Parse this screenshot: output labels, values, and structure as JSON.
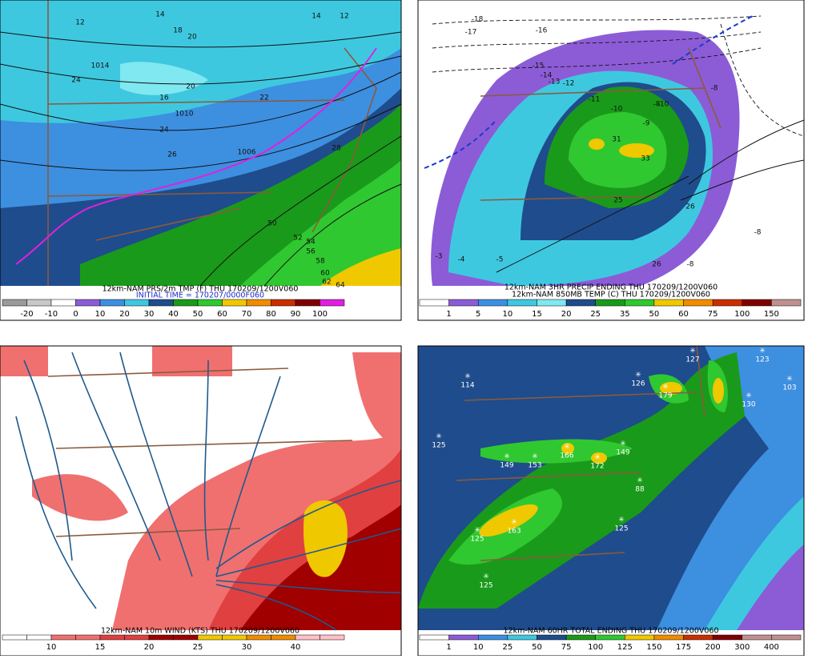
{
  "panels": [
    {
      "caption": "12km-NAM PRS/2m TMP (F) THU 170209/1200V060",
      "subcaption": "INITIAL TIME = 170207/0000F060",
      "colorbar": {
        "colors": [
          "#9a9a9a",
          "#c8c8c8",
          "#ffffff",
          "#8c5cd6",
          "#3d8fe0",
          "#3ec8e0",
          "#1f4c8c",
          "#1a9a1a",
          "#30c830",
          "#f0c800",
          "#f08c00",
          "#c83000",
          "#800000",
          "#e020e0"
        ],
        "labels": [
          -20,
          -10,
          0,
          10,
          20,
          30,
          40,
          50,
          60,
          70,
          80,
          90,
          100
        ]
      },
      "contour_labels": [
        "14",
        "12",
        "18",
        "20",
        "14",
        "12",
        "1014",
        "24",
        "16",
        "20",
        "22",
        "28",
        "1010",
        "24",
        "26",
        "1006",
        "50",
        "52",
        "54",
        "56",
        "58",
        "60",
        "62",
        "64"
      ]
    },
    {
      "caption": "12km-NAM 3HR PRECIP ENDING THU 170209/1200V060",
      "subcaption": "12km-NAM 850MB TEMP (C) THU 170209/1200V060",
      "colorbar": {
        "colors": [
          "#ffffff",
          "#8c5cd6",
          "#3d8fe0",
          "#3ec8e0",
          "#80e8f0",
          "#1f4c8c",
          "#1a9a1a",
          "#30c830",
          "#f0c800",
          "#f08c00",
          "#c83000",
          "#800000",
          "#c09090"
        ],
        "labels": [
          1,
          5,
          10,
          15,
          20,
          25,
          35,
          50,
          60,
          75,
          100,
          150
        ]
      },
      "contour_labels": [
        "-18",
        "-17",
        "-16",
        "-15",
        "-14",
        "-13",
        "-12",
        "-11",
        "-10",
        "-9",
        "-8",
        "-8",
        "-8",
        "-10",
        "-8",
        "-5",
        "-4",
        "-3",
        "31",
        "33",
        "26",
        "25",
        "26"
      ]
    },
    {
      "caption": "12km-NAM 10m WIND (KTS) THU 170209/1200V060",
      "colorbar": {
        "colors": [
          "#ffffff",
          "#ffffff",
          "#f07070",
          "#f07070",
          "#e04040",
          "#e04040",
          "#a00000",
          "#a00000",
          "#f0c800",
          "#f0c800",
          "#f08c00",
          "#f08c00",
          "#ffc0c8",
          "#ffc0c8"
        ],
        "labels": [
          10,
          15,
          20,
          25,
          30,
          40
        ]
      }
    },
    {
      "caption": "12km-NAM 60HR TOTAL ENDING THU 170209/1200V060",
      "colorbar": {
        "colors": [
          "#ffffff",
          "#8c5cd6",
          "#3d8fe0",
          "#3ec8e0",
          "#1f4c8c",
          "#1a9a1a",
          "#30c830",
          "#f0c800",
          "#f08c00",
          "#c83000",
          "#800000",
          "#c09090",
          "#c09090"
        ],
        "labels": [
          1,
          10,
          25,
          50,
          75,
          100,
          125,
          150,
          175,
          200,
          300,
          400
        ]
      },
      "stations": [
        "127",
        "123",
        "114",
        "126",
        "179",
        "130",
        "103",
        "125",
        "149",
        "153",
        "166",
        "172",
        "149",
        "88",
        "125",
        "125",
        "125",
        "163"
      ]
    }
  ]
}
